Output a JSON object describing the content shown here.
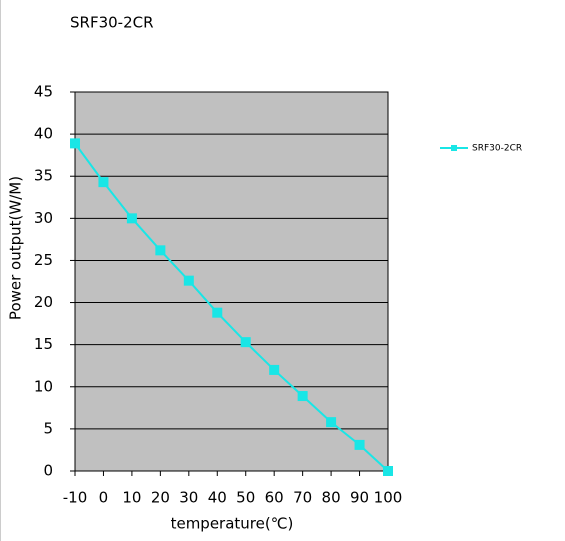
{
  "chart_data": {
    "type": "line",
    "title": "SRF30-2CR",
    "x_label": "temperature(℃)",
    "y_label": "Power output(W/M)",
    "x": [
      -10,
      0,
      10,
      20,
      30,
      40,
      50,
      60,
      70,
      80,
      90,
      100
    ],
    "series": [
      {
        "name": "SRF30-2CR",
        "color": "#19e6e6",
        "values": [
          38.9,
          34.3,
          30.0,
          26.2,
          22.6,
          18.8,
          15.3,
          12.0,
          8.9,
          5.8,
          3.1,
          0
        ]
      }
    ],
    "xlim": [
      -10,
      100
    ],
    "xticks": [
      -10,
      0,
      10,
      20,
      30,
      40,
      50,
      60,
      70,
      80,
      90,
      100
    ],
    "ylim": [
      0,
      45
    ],
    "yticks": [
      0,
      5,
      10,
      15,
      20,
      25,
      30,
      35,
      40,
      45
    ],
    "grid": true,
    "legend": "right",
    "plot_background": "#c0c0c0"
  }
}
